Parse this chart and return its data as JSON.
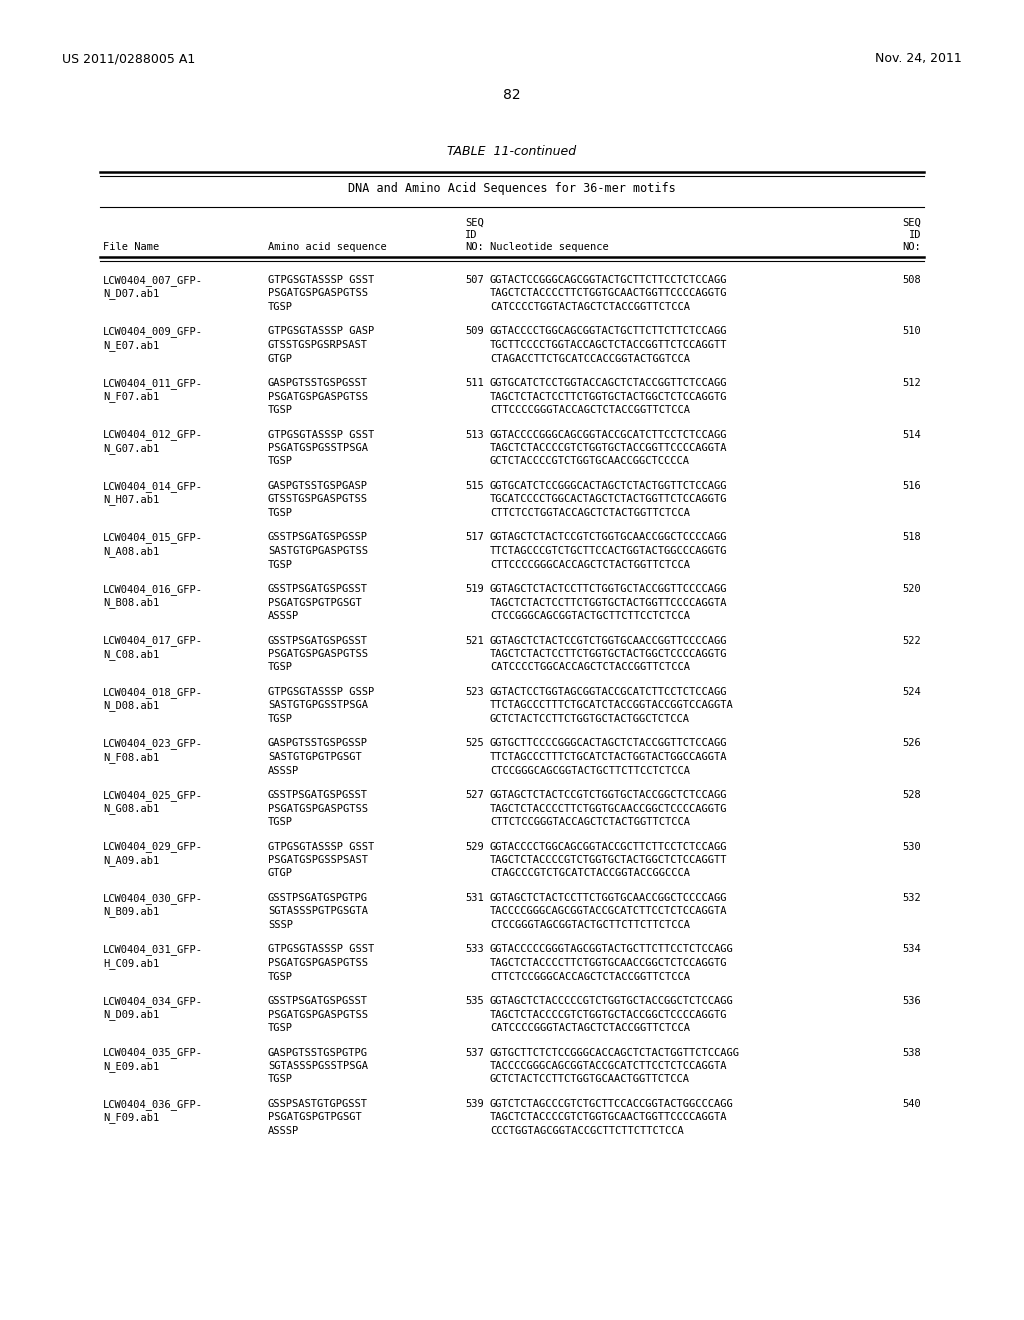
{
  "header_left": "US 2011/0288005 A1",
  "header_right": "Nov. 24, 2011",
  "page_number": "82",
  "table_title": "TABLE  11-continued",
  "table_subtitle": "DNA and Amino Acid Sequences for 36-mer motifs",
  "bg_color": "#ffffff",
  "text_color": "#000000",
  "row_data": [
    [
      "LCW0404_007_GFP-",
      "GTPGSGTASSSP GSST",
      "507",
      "GGTACTCCGGGCAGCGGTACTGCTTCTTCCTCTCCAGG",
      "508"
    ],
    [
      "N_D07.ab1",
      "PSGATGSPGASPGTSS",
      "",
      "TAGCTCTACCCCTTCTGGTGCAACTGGTTCCCCAGGTG",
      ""
    ],
    [
      "",
      "TGSP",
      "",
      "CATCCCCTGGTACTAGCTCTACCGGTTCTCCA",
      ""
    ],
    [
      "LCW0404_009_GFP-",
      "GTPGSGTASSSP GASP",
      "509",
      "GGTACCCCTGGCAGCGGTACTGCTTCTTCTTCTCCAGG",
      "510"
    ],
    [
      "N_E07.ab1",
      "GTSSTGSPGSRPSAST",
      "",
      "TGCTTCCCCTGGTACCAGCTCTACCGGTTCTCCAGGTT",
      ""
    ],
    [
      "",
      "GTGP",
      "",
      "CTAGACCTTCTGCATCCACCGGTACTGGTCCA",
      ""
    ],
    [
      "LCW0404_011_GFP-",
      "GASPGTSSTGSPGSST",
      "511",
      "GGTGCATCTCCTGGTACCAGCTCTACCGGTTCTCCAGG",
      "512"
    ],
    [
      "N_F07.ab1",
      "PSGATGSPGASPGTSS",
      "",
      "TAGCTCTACTCCTTCTGGTGCTACTGGCTCTCCAGGTG",
      ""
    ],
    [
      "",
      "TGSP",
      "",
      "CTTCCCCGGGTACCAGCTCTACCGGTTCTCCA",
      ""
    ],
    [
      "LCW0404_012_GFP-",
      "GTPGSGTASSSP GSST",
      "513",
      "GGTACCCCGGGCAGCGGTACCGCATCTTCCTCTCCAGG",
      "514"
    ],
    [
      "N_G07.ab1",
      "PSGATGSPGSSTPSGA",
      "",
      "TAGCTCTACCCCGTCTGGTGCTACCGGTTCCCCAGGTA",
      ""
    ],
    [
      "",
      "TGSP",
      "",
      "GCTCTACCCCGTCTGGTGCAACCGGCTCCCCA",
      ""
    ],
    [
      "LCW0404_014_GFP-",
      "GASPGTSSTGSPGASP",
      "515",
      "GGTGCATCTCCGGGCACTAGCTCTACTGGTTCTCCAGG",
      "516"
    ],
    [
      "N_H07.ab1",
      "GTSSTGSPGASPGTSS",
      "",
      "TGCATCCCCTGGCACTAGCTCTACTGGTTCTCCAGGTG",
      ""
    ],
    [
      "",
      "TGSP",
      "",
      "CTTCTCCTGGTACCAGCTCTACTGGTTCTCCA",
      ""
    ],
    [
      "LCW0404_015_GFP-",
      "GSSTPSGATGSPGSSP",
      "517",
      "GGTAGCTCTACTCCGTCTGGTGCAACCGGCTCCCCAGG",
      "518"
    ],
    [
      "N_A08.ab1",
      "SASTGTGPGASPGTSS",
      "",
      "TTCTAGCCCGTCTGCTTCCACTGGTACTGGCCCAGGTG",
      ""
    ],
    [
      "",
      "TGSP",
      "",
      "CTTCCCCGGGCACCAGCTCTACTGGTTCTCCA",
      ""
    ],
    [
      "LCW0404_016_GFP-",
      "GSSTPSGATGSPGSST",
      "519",
      "GGTAGCTCTACTCCTTCTGGTGCTACCGGTTCCCCAGG",
      "520"
    ],
    [
      "N_B08.ab1",
      "PSGATGSPGTPGSGT",
      "",
      "TAGCTCTACTCCTTCTGGTGCTACTGGTTCCCCAGGTA",
      ""
    ],
    [
      "",
      "ASSSP",
      "",
      "CTCCGGGCAGCGGTACTGCTTCTTCCTCTCCA",
      ""
    ],
    [
      "LCW0404_017_GFP-",
      "GSSTPSGATGSPGSST",
      "521",
      "GGTAGCTCTACTCCGTCTGGTGCAACCGGTTCCCCAGG",
      "522"
    ],
    [
      "N_C08.ab1",
      "PSGATGSPGASPGTSS",
      "",
      "TAGCTCTACTCCTTCTGGTGCTACTGGCTCCCCAGGTG",
      ""
    ],
    [
      "",
      "TGSP",
      "",
      "CATCCCCTGGCACCAGCTCTACCGGTTCTCCA",
      ""
    ],
    [
      "LCW0404_018_GFP-",
      "GTPGSGTASSSP GSSP",
      "523",
      "GGTACTCCTGGTAGCGGTACCGCATCTTCCTCTCCAGG",
      "524"
    ],
    [
      "N_D08.ab1",
      "SASTGTGPGSSTPSGA",
      "",
      "TTCTAGCCCTTTCTGCATCTACCGGTACCGGTCCAGGTA",
      ""
    ],
    [
      "",
      "TGSP",
      "",
      "GCTCTACTCCTTCTGGTGCTACTGGCTCTCCA",
      ""
    ],
    [
      "LCW0404_023_GFP-",
      "GASPGTSSTGSPGSSP",
      "525",
      "GGTGCTTCCCCGGGCACTAGCTCTACCGGTTCTCCAGG",
      "526"
    ],
    [
      "N_F08.ab1",
      "SASTGTGPGTPGSGT",
      "",
      "TTCTAGCCCTTTCTGCATCTACTGGTACTGGCCAGGTA",
      ""
    ],
    [
      "",
      "ASSSP",
      "",
      "CTCCGGGCAGCGGTACTGCTTCTTCCTCTCCA",
      ""
    ],
    [
      "LCW0404_025_GFP-",
      "GSSTPSGATGSPGSST",
      "527",
      "GGTAGCTCTACTCCGTCTGGTGCTACCGGCTCTCCAGG",
      "528"
    ],
    [
      "N_G08.ab1",
      "PSGATGSPGASPGTSS",
      "",
      "TAGCTCTACCCCTTCTGGTGCAACCGGCTCCCCAGGTG",
      ""
    ],
    [
      "",
      "TGSP",
      "",
      "CTTCTCCGGGTACCAGCTCTACTGGTTCTCCA",
      ""
    ],
    [
      "LCW0404_029_GFP-",
      "GTPGSGTASSSP GSST",
      "529",
      "GGTACCCCTGGCAGCGGTACCGCTTCTTCCTCTCCAGG",
      "530"
    ],
    [
      "N_A09.ab1",
      "PSGATGSPGSSPSAST",
      "",
      "TAGCTCTACCCCGTCTGGTGCTACTGGCTCTCCAGGTT",
      ""
    ],
    [
      "",
      "GTGP",
      "",
      "CTAGCCCGTCTGCATCTACCGGTACCGGCCCA",
      ""
    ],
    [
      "LCW0404_030_GFP-",
      "GSSTPSGATGSPGTPG",
      "531",
      "GGTAGCTCTACTCCTTCTGGTGCAACCGGCTCCCCAGG",
      "532"
    ],
    [
      "N_B09.ab1",
      "SGTASSSPGTPGSGTA",
      "",
      "TACCCCGGGCAGCGGTACCGCATCTTCCTCTCCAGGTA",
      ""
    ],
    [
      "",
      "SSSP",
      "",
      "CTCCGGGTAGCGGTACTGCTTCTTCTTCTCCA",
      ""
    ],
    [
      "LCW0404_031_GFP-",
      "GTPGSGTASSSP GSST",
      "533",
      "GGTACCCCCGGGTAGCGGTACTGCTTCTTCCTCTCCAGG",
      "534"
    ],
    [
      "H_C09.ab1",
      "PSGATGSPGASPGTSS",
      "",
      "TAGCTCTACCCCTTCTGGTGCAACCGGCTCTCCAGGTG",
      ""
    ],
    [
      "",
      "TGSP",
      "",
      "CTTCTCCGGGCACCAGCTCTACCGGTTCTCCA",
      ""
    ],
    [
      "LCW0404_034_GFP-",
      "GSSTPSGATGSPGSST",
      "535",
      "GGTAGCTCTACCCCCGTCTGGTGCTACCGGCTCTCCAGG",
      "536"
    ],
    [
      "N_D09.ab1",
      "PSGATGSPGASPGTSS",
      "",
      "TAGCTCTACCCCGTCTGGTGCTACCGGCTCCCCAGGTG",
      ""
    ],
    [
      "",
      "TGSP",
      "",
      "CATCCCCGGGTACTAGCTCTACCGGTTCTCCA",
      ""
    ],
    [
      "LCW0404_035_GFP-",
      "GASPGTSSTGSPGTPG",
      "537",
      "GGTGCTTCTCTCCGGGCACCAGCTCTACTGGTTCTCCAGG",
      "538"
    ],
    [
      "N_E09.ab1",
      "SGTASSSPGSSTPSGA",
      "",
      "TACCCCGGGCAGCGGTACCGCATCTTCCTCTCCAGGTA",
      ""
    ],
    [
      "",
      "TGSP",
      "",
      "GCTCTACTCCTTCTGGTGCAACTGGTTCTCCA",
      ""
    ],
    [
      "LCW0404_036_GFP-",
      "GSSPSASTGTGPGSST",
      "539",
      "GGTCTCTAGCCCGTCTGCTTCCACCGGTACTGGCCCAGG",
      "540"
    ],
    [
      "N_F09.ab1",
      "PSGATGSPGTPGSGT",
      "",
      "TAGCTCTACCCCGTCTGGTGCAACTGGTTCCCCAGGTA",
      ""
    ],
    [
      "",
      "ASSSP",
      "",
      "CCCTGGTAGCGGTACCGCTTCTTCTTCTCCA",
      ""
    ]
  ]
}
